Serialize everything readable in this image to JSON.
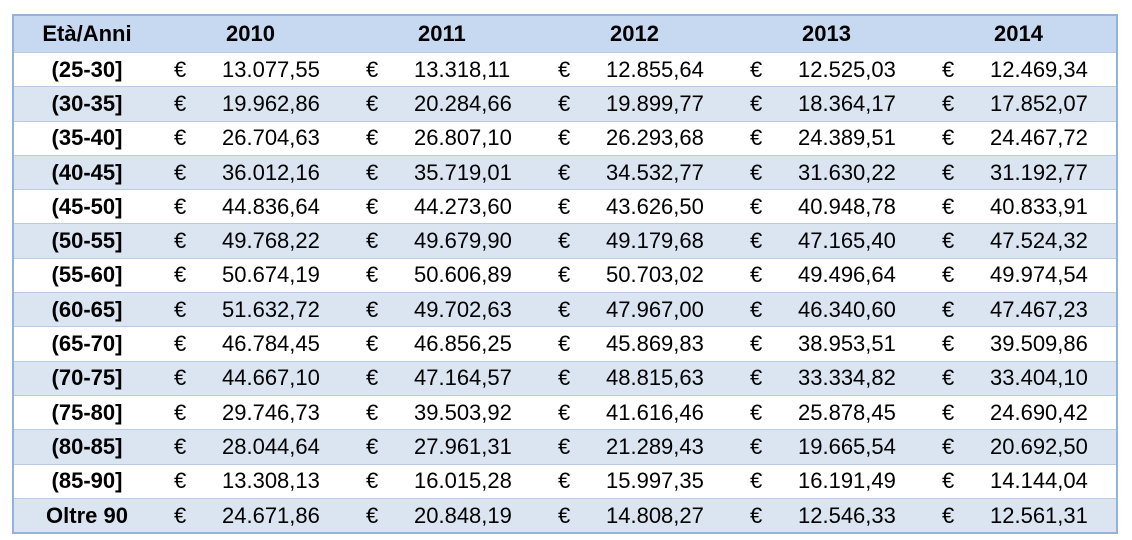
{
  "table": {
    "header": [
      "Età/Anni",
      "2010",
      "2011",
      "2012",
      "2013",
      "2014"
    ],
    "rows": [
      [
        "(25-30]",
        "€",
        "13.077,55",
        "€",
        "13.318,11",
        "€",
        "12.855,64",
        "€",
        "12.525,03",
        "€",
        "12.469,34"
      ],
      [
        "(30-35]",
        "€",
        "19.962,86",
        "€",
        "20.284,66",
        "€",
        "19.899,77",
        "€",
        "18.364,17",
        "€",
        "17.852,07"
      ],
      [
        "(35-40]",
        "€",
        "26.704,63",
        "€",
        "26.807,10",
        "€",
        "26.293,68",
        "€",
        "24.389,51",
        "€",
        "24.467,72"
      ],
      [
        "(40-45]",
        "€",
        "36.012,16",
        "€",
        "35.719,01",
        "€",
        "34.532,77",
        "€",
        "31.630,22",
        "€",
        "31.192,77"
      ],
      [
        "(45-50]",
        "€",
        "44.836,64",
        "€",
        "44.273,60",
        "€",
        "43.626,50",
        "€",
        "40.948,78",
        "€",
        "40.833,91"
      ],
      [
        "(50-55]",
        "€",
        "49.768,22",
        "€",
        "49.679,90",
        "€",
        "49.179,68",
        "€",
        "47.165,40",
        "€",
        "47.524,32"
      ],
      [
        "(55-60]",
        "€",
        "50.674,19",
        "€",
        "50.606,89",
        "€",
        "50.703,02",
        "€",
        "49.496,64",
        "€",
        "49.974,54"
      ],
      [
        "(60-65]",
        "€",
        "51.632,72",
        "€",
        "49.702,63",
        "€",
        "47.967,00",
        "€",
        "46.340,60",
        "€",
        "47.467,23"
      ],
      [
        "(65-70]",
        "€",
        "46.784,45",
        "€",
        "46.856,25",
        "€",
        "45.869,83",
        "€",
        "38.953,51",
        "€",
        "39.509,86"
      ],
      [
        "(70-75]",
        "€",
        "44.667,10",
        "€",
        "47.164,57",
        "€",
        "48.815,63",
        "€",
        "33.334,82",
        "€",
        "33.404,10"
      ],
      [
        "(75-80]",
        "€",
        "29.746,73",
        "€",
        "39.503,92",
        "€",
        "41.616,46",
        "€",
        "25.878,45",
        "€",
        "24.690,42"
      ],
      [
        "(80-85]",
        "€",
        "28.044,64",
        "€",
        "27.961,31",
        "€",
        "21.289,43",
        "€",
        "19.665,54",
        "€",
        "20.692,50"
      ],
      [
        "(85-90]",
        "€",
        "13.308,13",
        "€",
        "16.015,28",
        "€",
        "15.997,35",
        "€",
        "16.191,49",
        "€",
        "14.144,04"
      ],
      [
        "Oltre 90",
        "€",
        "24.671,86",
        "€",
        "20.848,19",
        "€",
        "14.808,27",
        "€",
        "12.546,33",
        "€",
        "12.561,31"
      ]
    ]
  }
}
